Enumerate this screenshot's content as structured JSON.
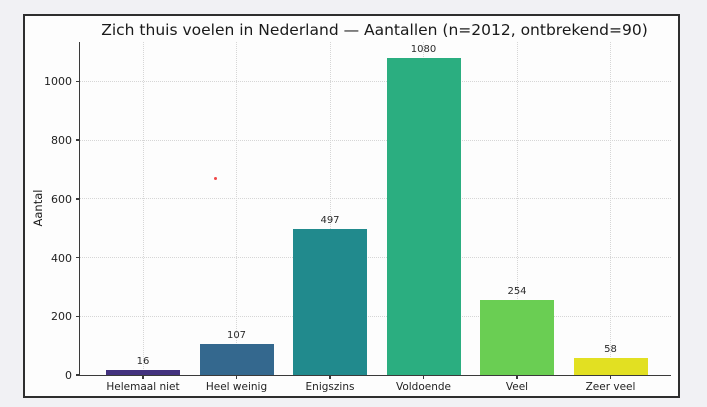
{
  "canvas": {
    "background": "#f1f1f4"
  },
  "figure": {
    "background": "#fdfdfd",
    "border_color": "#2e2e2e"
  },
  "chart_data": {
    "type": "bar",
    "title": "Zich thuis voelen in Nederland — Aantallen (n=2012, ontbrekend=90)",
    "xlabel": "",
    "ylabel": "Aantal",
    "categories": [
      "Helemaal niet",
      "Heel weinig",
      "Enigszins",
      "Voldoende",
      "Veel",
      "Zeer veel"
    ],
    "values": [
      16,
      107,
      497,
      1080,
      254,
      58
    ],
    "value_labels": [
      "16",
      "107",
      "497",
      "1080",
      "254",
      "58"
    ],
    "bar_colors": [
      "#43327e",
      "#34688e",
      "#218a8d",
      "#2bae80",
      "#6ace53",
      "#e2e022"
    ],
    "yticks": [
      0,
      200,
      400,
      600,
      800,
      1000
    ],
    "ylim": [
      0,
      1134
    ],
    "grid": true,
    "grid_style": "dotted",
    "legend": "none",
    "n_total": 2012,
    "n_missing": 90
  },
  "artifact": {
    "stray_dot_color": "#f04848"
  }
}
